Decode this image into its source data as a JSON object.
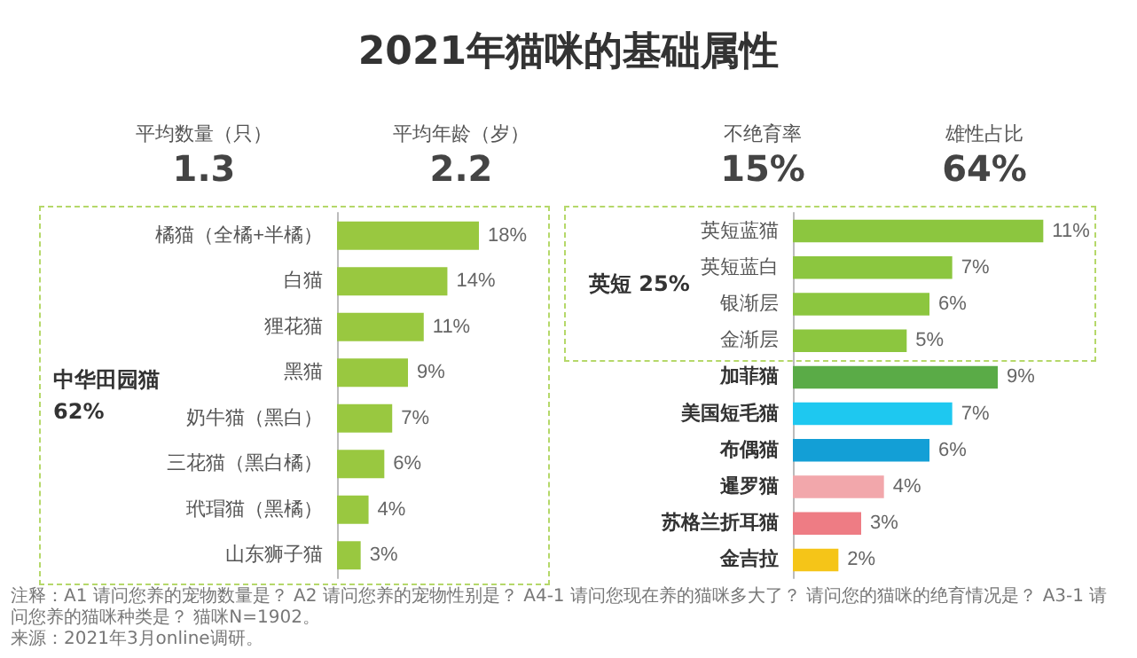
{
  "chart_data": [
    {
      "type": "other",
      "title": "2021年猫咪的基础属性",
      "annotations": [
        "平均数量（只）",
        "1.3",
        "平均年龄（岁）",
        "2.2",
        "不绝育率",
        "15%",
        "雄性占比",
        "64%"
      ]
    },
    {
      "type": "bar",
      "orientation": "horizontal",
      "tick_labels": "y",
      "categories": [
        "橘猫（全橘+半橘）",
        "白猫",
        "狸花猫",
        "黑猫",
        "奶牛猫（黑白）",
        "三花猫（黑白橘）",
        "玳瑁猫（黑橘）",
        "山东狮子猫"
      ],
      "values": [
        18,
        14,
        11,
        9,
        7,
        6,
        4,
        3
      ],
      "value_labels": [
        "18%",
        "14%",
        "11%",
        "9%",
        "7%",
        "6%",
        "4%",
        "3%"
      ],
      "color": "#99c840",
      "annotations": [
        "中华田园猫 62%"
      ]
    },
    {
      "type": "bar",
      "orientation": "horizontal",
      "tick_labels": "y",
      "categories": [
        "英短蓝猫",
        "英短蓝白",
        "银渐层",
        "金渐层",
        "加菲猫",
        "美国短毛猫",
        "布偶猫",
        "暹罗猫",
        "苏格兰折耳猫",
        "金吉拉"
      ],
      "values": [
        11,
        7,
        6,
        5,
        9,
        7,
        6,
        4,
        3,
        2
      ],
      "value_labels": [
        "11%",
        "7%",
        "6%",
        "5%",
        "9%",
        "7%",
        "6%",
        "4%",
        "3%",
        "2%"
      ],
      "colors": [
        "#8cc63f",
        "#8cc63f",
        "#8cc63f",
        "#8cc63f",
        "#5aab47",
        "#1ec8f0",
        "#139fd6",
        "#f2a7ab",
        "#ee7c84",
        "#f5c518"
      ],
      "annotations": [
        "英短 25%",
        "注释：A1 请问您养的宠物数量是？ A2 请问您养的宠物性别是？ A4-1 请问您现在养的猫咪多大了？ 请问您的猫咪的绝育情况是？ A3-1 请问您养的猫咪种类是？ 猫咪N=1902。",
        "来源：2021年3月online调研。"
      ]
    }
  ]
}
